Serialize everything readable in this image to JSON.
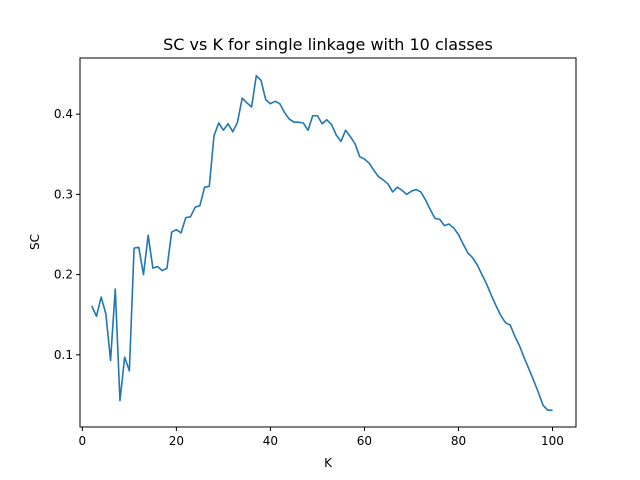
{
  "chart_data": {
    "type": "line",
    "title": "SC vs K for single linkage with 10 classes",
    "xlabel": "K",
    "ylabel": "SC",
    "xlim": [
      -0.5,
      105
    ],
    "ylim": [
      0.01,
      0.47
    ],
    "xticks": [
      0,
      20,
      40,
      60,
      80,
      100
    ],
    "yticks": [
      0.1,
      0.2,
      0.3,
      0.4
    ],
    "ytick_labels": [
      "0.1",
      "0.2",
      "0.3",
      "0.4"
    ],
    "grid": false,
    "line_color": "#1f77b4",
    "series": [
      {
        "x": [
          2,
          3,
          4,
          5,
          6,
          7,
          8,
          9,
          10,
          11,
          12,
          13,
          14,
          15,
          16,
          17,
          18,
          19,
          20,
          21,
          22,
          23,
          24,
          25,
          26,
          27,
          28,
          29,
          30,
          31,
          32,
          33,
          34,
          35,
          36,
          37,
          38,
          39,
          40,
          41,
          42,
          43,
          44,
          45,
          46,
          47,
          48,
          49,
          50,
          51,
          52,
          53,
          54,
          55,
          56,
          57,
          58,
          59,
          60,
          61,
          62,
          63,
          64,
          65,
          66,
          67,
          68,
          69,
          70,
          71,
          72,
          73,
          74,
          75,
          76,
          77,
          78,
          79,
          80,
          81,
          82,
          83,
          84,
          85,
          86,
          87,
          88,
          89,
          90,
          91,
          92,
          93,
          94,
          95,
          96,
          97,
          98,
          99,
          100
        ],
        "values": [
          0.161,
          0.148,
          0.172,
          0.151,
          0.093,
          0.182,
          0.043,
          0.097,
          0.08,
          0.233,
          0.234,
          0.2,
          0.249,
          0.208,
          0.21,
          0.205,
          0.208,
          0.253,
          0.256,
          0.252,
          0.271,
          0.272,
          0.284,
          0.286,
          0.309,
          0.31,
          0.373,
          0.389,
          0.38,
          0.388,
          0.378,
          0.39,
          0.42,
          0.414,
          0.409,
          0.448,
          0.442,
          0.418,
          0.413,
          0.416,
          0.413,
          0.402,
          0.394,
          0.39,
          0.39,
          0.389,
          0.38,
          0.398,
          0.398,
          0.388,
          0.393,
          0.387,
          0.374,
          0.366,
          0.38,
          0.372,
          0.363,
          0.347,
          0.344,
          0.339,
          0.33,
          0.322,
          0.318,
          0.313,
          0.303,
          0.309,
          0.305,
          0.3,
          0.304,
          0.306,
          0.303,
          0.293,
          0.281,
          0.27,
          0.269,
          0.261,
          0.263,
          0.258,
          0.25,
          0.238,
          0.227,
          0.221,
          0.212,
          0.2,
          0.188,
          0.174,
          0.161,
          0.149,
          0.14,
          0.137,
          0.123,
          0.111,
          0.096,
          0.082,
          0.068,
          0.053,
          0.037,
          0.031,
          0.031
        ]
      }
    ]
  }
}
